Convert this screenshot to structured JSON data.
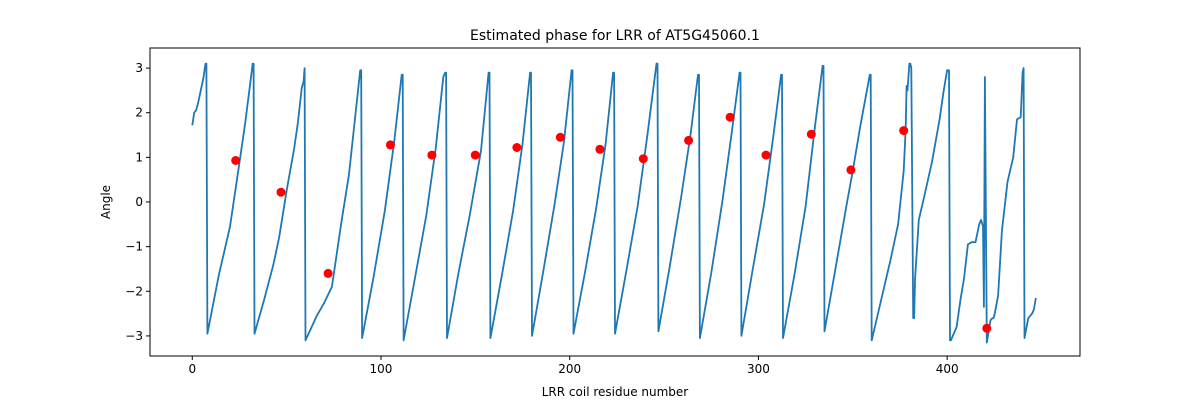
{
  "chart_data": {
    "type": "line",
    "title": "Estimated phase for LRR of AT5G45060.1",
    "xlabel": "LRR coil residue number",
    "ylabel": "Angle",
    "xlim": [
      -22.4,
      470.4
    ],
    "ylim": [
      -3.45,
      3.45
    ],
    "xticks": [
      0,
      100,
      200,
      300,
      400
    ],
    "yticks": [
      -3,
      -2,
      -1,
      0,
      1,
      2,
      3
    ],
    "grid": false,
    "legend": "none",
    "series": [
      {
        "style": "line",
        "color": "#1f77b4",
        "x": [
          0,
          1,
          2,
          3,
          4,
          5,
          6,
          7,
          7.5,
          8,
          14,
          20,
          24,
          28,
          32,
          32.5,
          33,
          38,
          43,
          46,
          50,
          54,
          56,
          58,
          59,
          59.5,
          60,
          66,
          70,
          74,
          79,
          83,
          89,
          89.5,
          90,
          96,
          102,
          107,
          111,
          111.5,
          112,
          118,
          124,
          129,
          133,
          134,
          134.5,
          135,
          141,
          147,
          153,
          157,
          157.5,
          158,
          164,
          170,
          175,
          179,
          179.5,
          180,
          186,
          192,
          197,
          201,
          201.5,
          202,
          208,
          214,
          219,
          223,
          223.5,
          224,
          230,
          236,
          241,
          246,
          246.5,
          247,
          253,
          259,
          264,
          268,
          268.5,
          269,
          275,
          281,
          286,
          290,
          290.5,
          291,
          297,
          303,
          308,
          312,
          312.5,
          313,
          319,
          325,
          330,
          334,
          334.5,
          335,
          341,
          347,
          350,
          354,
          359,
          359.5,
          360,
          365,
          370,
          374,
          377,
          378,
          378.5,
          379,
          380,
          380.5,
          381,
          382,
          382.5,
          383,
          385,
          388,
          392,
          396,
          398,
          400,
          401,
          401.5,
          402,
          405,
          407,
          409,
          411,
          413,
          415,
          417,
          418,
          419,
          419.5,
          420,
          421,
          422,
          423,
          424,
          424.5,
          425,
          427,
          429,
          432,
          435,
          437,
          439,
          440,
          440.5,
          441,
          443,
          444,
          445,
          446,
          447
        ],
        "y": [
          1.72,
          2.0,
          2.05,
          2.2,
          2.4,
          2.6,
          2.8,
          3.1,
          3.1,
          -2.95,
          -1.65,
          -0.55,
          0.6,
          1.75,
          3.1,
          3.1,
          -2.95,
          -2.2,
          -1.4,
          -0.8,
          0.25,
          1.2,
          1.8,
          2.55,
          2.7,
          3.0,
          -3.1,
          -2.55,
          -2.25,
          -1.9,
          -0.45,
          0.6,
          2.95,
          2.95,
          -3.05,
          -1.7,
          -0.2,
          1.35,
          2.85,
          2.85,
          -3.1,
          -1.7,
          -0.3,
          1.2,
          2.8,
          2.9,
          2.9,
          -3.05,
          -1.6,
          -0.3,
          1.15,
          2.9,
          2.9,
          -3.05,
          -1.65,
          -0.2,
          1.3,
          2.9,
          2.9,
          -3.0,
          -1.55,
          -0.05,
          1.35,
          2.95,
          2.95,
          -2.95,
          -1.6,
          -0.15,
          1.3,
          2.9,
          2.9,
          -2.95,
          -1.55,
          -0.1,
          1.45,
          3.1,
          3.1,
          -2.9,
          -1.45,
          0.1,
          1.5,
          2.85,
          2.85,
          -3.05,
          -1.6,
          0.05,
          1.6,
          2.9,
          2.9,
          -3.0,
          -1.5,
          -0.05,
          1.5,
          2.85,
          2.85,
          -3.05,
          -1.65,
          -0.1,
          1.7,
          3.05,
          3.05,
          -2.9,
          -1.45,
          0.0,
          0.7,
          1.7,
          2.85,
          2.85,
          -3.1,
          -2.2,
          -1.3,
          -0.5,
          0.7,
          1.6,
          2.6,
          2.5,
          3.1,
          3.1,
          3.0,
          -2.6,
          -2.6,
          -1.7,
          -0.4,
          0.15,
          0.9,
          1.85,
          2.45,
          2.95,
          2.95,
          -3.1,
          -3.1,
          -2.8,
          -2.2,
          -1.7,
          -0.95,
          -0.9,
          -0.9,
          -0.5,
          -0.4,
          -0.55,
          -2.35,
          2.8,
          -3.15,
          -2.9,
          -2.65,
          -2.6,
          -2.6,
          -2.55,
          -2.1,
          -0.65,
          0.45,
          1.0,
          1.85,
          1.9,
          2.9,
          3.0,
          -3.05,
          -2.6,
          -2.55,
          -2.5,
          -2.4,
          -2.15
        ]
      },
      {
        "style": "markers",
        "color": "#ff0000",
        "x": [
          23,
          47,
          72,
          105,
          127,
          150,
          172,
          195,
          216,
          239,
          263,
          285,
          304,
          328,
          349,
          377,
          421
        ],
        "y": [
          0.93,
          0.22,
          -1.6,
          1.28,
          1.05,
          1.05,
          1.22,
          1.45,
          1.18,
          0.97,
          1.38,
          1.9,
          1.05,
          1.52,
          0.72,
          1.6,
          -2.83
        ]
      }
    ]
  }
}
